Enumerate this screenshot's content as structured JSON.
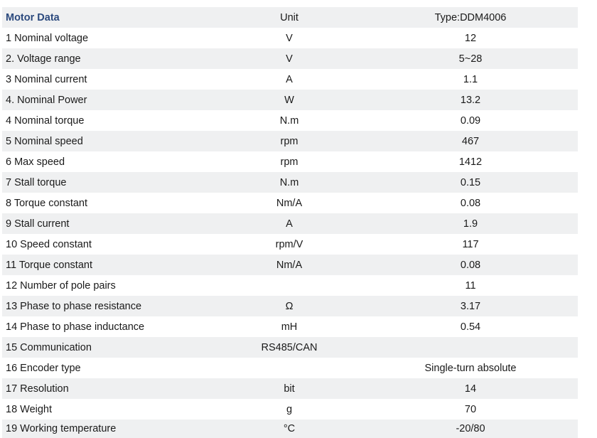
{
  "table": {
    "header": {
      "param": "Motor Data",
      "unit": "Unit",
      "value": "Type:DDM4006"
    },
    "rows": [
      {
        "param": "1 Nominal voltage",
        "unit": "V",
        "value": "12"
      },
      {
        "param": "2. Voltage range",
        "unit": "V",
        "value": "5~28"
      },
      {
        "param": "3 Nominal current",
        "unit": "A",
        "value": "1.1"
      },
      {
        "param": "4. Nominal Power",
        "unit": "W",
        "value": "13.2"
      },
      {
        "param": "4 Nominal torque",
        "unit": "N.m",
        "value": "0.09"
      },
      {
        "param": "5 Nominal speed",
        "unit": "rpm",
        "value": "467"
      },
      {
        "param": "6 Max speed",
        "unit": "rpm",
        "value": "1412"
      },
      {
        "param": "7 Stall torque",
        "unit": "N.m",
        "value": "0.15"
      },
      {
        "param": "8 Torque constant",
        "unit": "Nm/A",
        "value": "0.08"
      },
      {
        "param": "9 Stall current",
        "unit": "A",
        "value": "1.9"
      },
      {
        "param": "10 Speed constant",
        "unit": "rpm/V",
        "value": "117"
      },
      {
        "param": "11 Torque constant",
        "unit": "Nm/A",
        "value": "0.08"
      },
      {
        "param": "12 Number of  pole pairs",
        "unit": "",
        "value": "11"
      },
      {
        "param": "13 Phase to phase resistance",
        "unit": "Ω",
        "value": "3.17"
      },
      {
        "param": "14 Phase to phase inductance",
        "unit": "mH",
        "value": "0.54"
      },
      {
        "param": "15 Communication",
        "unit": "RS485/CAN",
        "value": ""
      },
      {
        "param": "16 Encoder type",
        "unit": "",
        "value": "Single-turn absolute"
      },
      {
        "param": "17 Resolution",
        "unit": "bit",
        "value": "14"
      },
      {
        "param": "18 Weight",
        "unit": "g",
        "value": "70"
      },
      {
        "param": "19 Working temperature",
        "unit": "°C",
        "value": "-20/80"
      }
    ]
  }
}
